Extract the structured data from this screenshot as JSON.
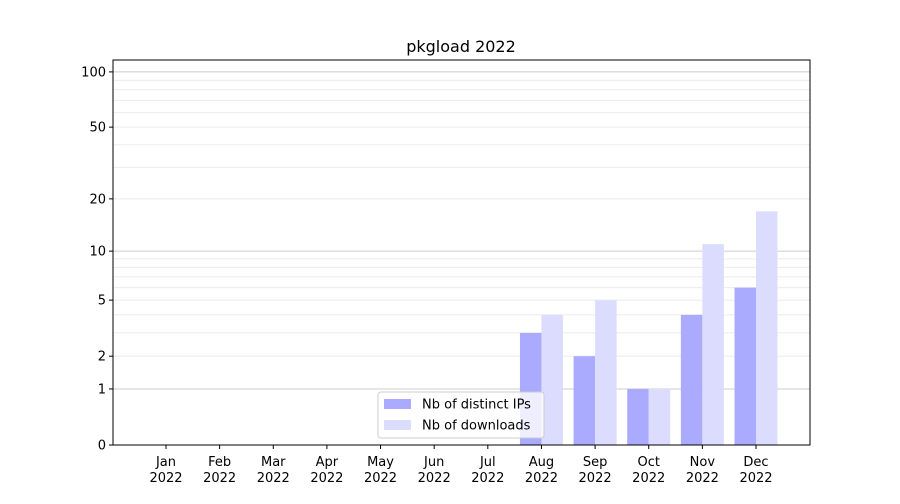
{
  "chart_data": {
    "type": "bar",
    "title": "pkgload 2022",
    "xlabel": "",
    "ylabel": "",
    "y_scale": "log(1+y)",
    "ylim": [
      0,
      116
    ],
    "yticks": [
      0,
      1,
      2,
      5,
      10,
      20,
      50,
      100
    ],
    "grid": true,
    "legend_position": "bottom-center",
    "categories": [
      "Jan\n2022",
      "Feb\n2022",
      "Mar\n2022",
      "Apr\n2022",
      "May\n2022",
      "Jun\n2022",
      "Jul\n2022",
      "Aug\n2022",
      "Sep\n2022",
      "Oct\n2022",
      "Nov\n2022",
      "Dec\n2022"
    ],
    "series": [
      {
        "name": "Nb of distinct IPs",
        "color": "#aaaaff",
        "values": [
          0,
          0,
          0,
          0,
          0,
          0,
          0,
          3,
          2,
          1,
          4,
          6
        ]
      },
      {
        "name": "Nb of downloads",
        "color": "#dcdcff",
        "values": [
          0,
          0,
          0,
          0,
          0,
          0,
          0,
          4,
          5,
          1,
          11,
          17
        ]
      }
    ]
  }
}
